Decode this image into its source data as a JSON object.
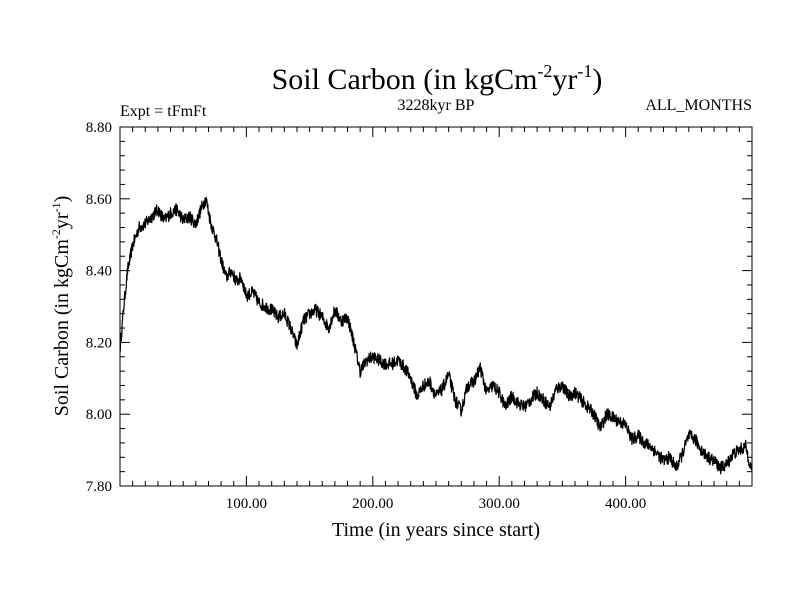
{
  "chart_data": {
    "type": "line",
    "title": {
      "prefix": "Soil Carbon (in kgCm",
      "exp1": "-2",
      "mid": "yr",
      "exp2": "-1",
      "suffix": ")"
    },
    "header_left": "Expt = tFmFt",
    "header_center": "3228kyr BP",
    "header_right": "ALL_MONTHS",
    "xlabel": "Time (in years since start)",
    "ylabel": {
      "prefix": "Soil Carbon (in kgCm",
      "exp1": "-2",
      "mid": "yr",
      "exp2": "-1",
      "suffix": ")"
    },
    "xlim": [
      0,
      500
    ],
    "ylim": [
      7.8,
      8.8
    ],
    "xticks": [
      100,
      200,
      300,
      400
    ],
    "xtick_labels": [
      "100.00",
      "200.00",
      "300.00",
      "400.00"
    ],
    "yticks": [
      7.8,
      8.0,
      8.2,
      8.4,
      8.6,
      8.8
    ],
    "ytick_labels": [
      "7.80",
      "8.00",
      "8.20",
      "8.40",
      "8.60",
      "8.80"
    ],
    "grid": false,
    "series": [
      {
        "name": "Soil Carbon",
        "color": "#000000",
        "x": [
          0,
          3,
          6,
          10,
          15,
          20,
          25,
          30,
          35,
          40,
          45,
          50,
          55,
          60,
          65,
          68,
          72,
          76,
          80,
          84,
          88,
          92,
          96,
          100,
          105,
          110,
          115,
          120,
          125,
          130,
          135,
          140,
          145,
          150,
          155,
          160,
          165,
          170,
          175,
          180,
          185,
          190,
          195,
          200,
          205,
          210,
          215,
          220,
          225,
          230,
          235,
          240,
          245,
          250,
          255,
          260,
          265,
          270,
          275,
          280,
          285,
          290,
          295,
          300,
          305,
          310,
          315,
          320,
          325,
          330,
          335,
          340,
          345,
          350,
          355,
          360,
          365,
          370,
          375,
          380,
          385,
          390,
          395,
          400,
          405,
          410,
          415,
          420,
          425,
          430,
          435,
          440,
          445,
          450,
          455,
          460,
          465,
          470,
          475,
          480,
          485,
          490,
          495,
          500
        ],
        "values": [
          8.18,
          8.3,
          8.4,
          8.47,
          8.52,
          8.53,
          8.55,
          8.57,
          8.54,
          8.56,
          8.57,
          8.54,
          8.55,
          8.53,
          8.58,
          8.6,
          8.53,
          8.49,
          8.43,
          8.38,
          8.4,
          8.37,
          8.38,
          8.33,
          8.34,
          8.31,
          8.3,
          8.29,
          8.27,
          8.28,
          8.24,
          8.19,
          8.26,
          8.28,
          8.29,
          8.27,
          8.24,
          8.29,
          8.26,
          8.27,
          8.2,
          8.12,
          8.15,
          8.16,
          8.15,
          8.14,
          8.14,
          8.15,
          8.13,
          8.1,
          8.05,
          8.08,
          8.09,
          8.05,
          8.07,
          8.11,
          8.04,
          8.01,
          8.08,
          8.09,
          8.13,
          8.06,
          8.08,
          8.06,
          8.02,
          8.05,
          8.03,
          8.02,
          8.04,
          8.06,
          8.04,
          8.02,
          8.07,
          8.08,
          8.05,
          8.06,
          8.04,
          8.02,
          8.0,
          7.96,
          8.0,
          7.99,
          7.98,
          7.97,
          7.93,
          7.94,
          7.92,
          7.91,
          7.89,
          7.87,
          7.88,
          7.85,
          7.89,
          7.94,
          7.93,
          7.9,
          7.88,
          7.87,
          7.85,
          7.86,
          7.89,
          7.9,
          7.91,
          7.84
        ]
      }
    ]
  }
}
